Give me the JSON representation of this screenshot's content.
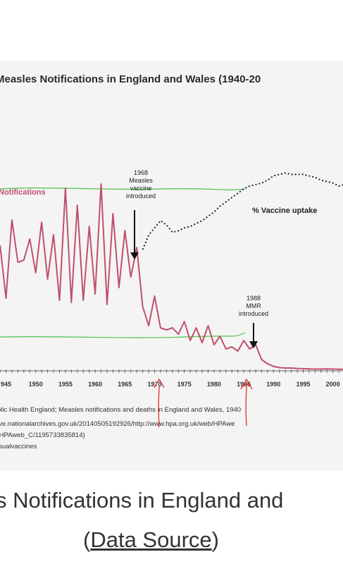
{
  "chart_data": {
    "type": "line",
    "title": "Measles Notifications in England and Wales (1940-20",
    "x_range": [
      1944,
      2003
    ],
    "x_ticks": [
      "945",
      "1950",
      "1955",
      "1960",
      "1965",
      "1970",
      "1975",
      "1980",
      "1985",
      "1990",
      "1995",
      "2000"
    ],
    "series": [
      {
        "name": "Notifications",
        "color": "#c0506a",
        "x": [
          1944,
          1945,
          1946,
          1947,
          1948,
          1949,
          1950,
          1951,
          1952,
          1953,
          1954,
          1955,
          1956,
          1957,
          1958,
          1959,
          1960,
          1961,
          1962,
          1963,
          1964,
          1965,
          1966,
          1967,
          1968,
          1969,
          1970,
          1971,
          1972,
          1973,
          1974,
          1975,
          1976,
          1977,
          1978,
          1979,
          1980,
          1981,
          1982,
          1983,
          1984,
          1985,
          1986,
          1987,
          1988,
          1989,
          1990,
          1991,
          1992,
          1993,
          1994,
          1995,
          1996,
          1997,
          1998,
          1999,
          2000,
          2001,
          2002,
          2003
        ],
        "y": [
          0.59,
          0.34,
          0.71,
          0.51,
          0.52,
          0.62,
          0.46,
          0.7,
          0.43,
          0.64,
          0.33,
          0.86,
          0.32,
          0.78,
          0.33,
          0.68,
          0.36,
          0.88,
          0.31,
          0.74,
          0.39,
          0.66,
          0.44,
          0.58,
          0.3,
          0.21,
          0.35,
          0.2,
          0.19,
          0.2,
          0.17,
          0.23,
          0.14,
          0.2,
          0.13,
          0.21,
          0.12,
          0.16,
          0.1,
          0.11,
          0.09,
          0.14,
          0.1,
          0.12,
          0.05,
          0.03,
          0.018,
          0.012,
          0.01,
          0.01,
          0.008,
          0.007,
          0.006,
          0.005,
          0.005,
          0.006,
          0.005,
          0.004,
          0.004,
          0.004
        ]
      },
      {
        "name": "% Vaccine uptake",
        "color": "#222222",
        "x": [
          1968,
          1969,
          1970,
          1971,
          1972,
          1973,
          1974,
          1975,
          1976,
          1977,
          1978,
          1979,
          1980,
          1981,
          1982,
          1983,
          1984,
          1985,
          1986,
          1987,
          1988,
          1989,
          1990,
          1991,
          1992,
          1993,
          1994,
          1995,
          1996,
          1997,
          1998,
          1999,
          2000,
          2001,
          2002
        ],
        "y": [
          40,
          50,
          55,
          60,
          57,
          52,
          53,
          55,
          56,
          58,
          60,
          63,
          66,
          70,
          73,
          76,
          79,
          82,
          84,
          85,
          86,
          88,
          91,
          92,
          93,
          92,
          92,
          92,
          91,
          90,
          88,
          87,
          86,
          84,
          85
        ]
      }
    ],
    "annotations": [
      {
        "label": [
          "1968",
          "Measles",
          "vaccine",
          "introduced"
        ],
        "x": 1968
      },
      {
        "label": [
          "1988",
          "MMR",
          "introduced"
        ],
        "x": 1988
      }
    ]
  },
  "labels": {
    "series1": "Notifications",
    "series2": "% Vaccine uptake",
    "ann1": [
      "1968",
      "Measles",
      "vaccine",
      "introduced"
    ],
    "ann2": [
      "1988",
      "MMR",
      "introduced"
    ]
  },
  "source_lines": [
    "blic Health England; Measles notifications and deaths in England and Wales, 1940",
    "ive.nationalarchives.gov.uk/20140505192926/http://www.hpa.org.uk/web/HPAwe",
    "/HPAweb_C/1195733835814)",
    "isualvaccines"
  ],
  "caption": {
    "line1": "s Notifications in England and",
    "line2_prefix": "(",
    "line2_link": "Data Source",
    "line2_suffix": ")"
  },
  "colors": {
    "notifications": "#c0506a",
    "uptake": "#222222",
    "bracket_lines": "#4cc24c",
    "handwriting": "#e03030"
  }
}
